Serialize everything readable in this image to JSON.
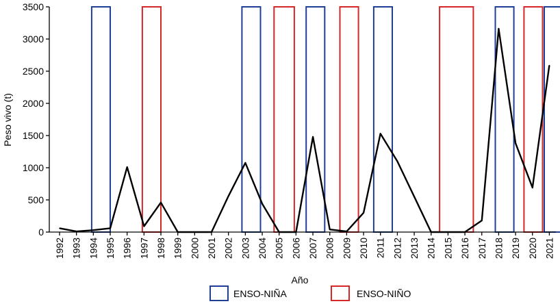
{
  "chart_data": {
    "type": "line",
    "title": "",
    "xlabel": "Año",
    "ylabel": "Peso vivo (t)",
    "ylim": [
      0,
      3500
    ],
    "yticks": [
      0,
      500,
      1000,
      1500,
      2000,
      2500,
      3000,
      3500
    ],
    "categories": [
      "1992",
      "1993",
      "1994",
      "1995",
      "1996",
      "1997",
      "1998",
      "1999",
      "2000",
      "2001",
      "2002",
      "2003",
      "2004",
      "2005",
      "2006",
      "2007",
      "2008",
      "2009",
      "2010",
      "2011",
      "2012",
      "2013",
      "2014",
      "2015",
      "2016",
      "2017",
      "2018",
      "2019",
      "2020",
      "2021"
    ],
    "series": [
      {
        "name": "Peso vivo",
        "color": "#000000",
        "values": [
          60,
          10,
          30,
          60,
          1010,
          90,
          460,
          0,
          0,
          0,
          560,
          1075,
          440,
          0,
          0,
          1480,
          40,
          10,
          300,
          1530,
          1100,
          550,
          0,
          0,
          0,
          180,
          3160,
          1380,
          690,
          2590
        ]
      }
    ],
    "enso_periods": [
      {
        "type": "nina",
        "start": "1993.9",
        "end": "1995.0"
      },
      {
        "type": "nino",
        "start": "1996.9",
        "end": "1998.0"
      },
      {
        "type": "nina",
        "start": "2002.8",
        "end": "2003.9"
      },
      {
        "type": "nino",
        "start": "2004.7",
        "end": "2005.9"
      },
      {
        "type": "nina",
        "start": "2006.6",
        "end": "2007.7"
      },
      {
        "type": "nino",
        "start": "2008.6",
        "end": "2009.7"
      },
      {
        "type": "nina",
        "start": "2010.6",
        "end": "2011.7"
      },
      {
        "type": "nino",
        "start": "2014.5",
        "end": "2016.5"
      },
      {
        "type": "nina",
        "start": "2017.8",
        "end": "2018.9"
      },
      {
        "type": "nino",
        "start": "2019.5",
        "end": "2020.6"
      },
      {
        "type": "nina",
        "start": "2020.7",
        "end": "2021.8"
      }
    ],
    "legend": {
      "nina_label": "ENSO-NIÑA",
      "nino_label": "ENSO-NIÑO",
      "nina_color": "#1f3f97",
      "nino_color": "#d62728",
      "placement": "bottom"
    }
  }
}
